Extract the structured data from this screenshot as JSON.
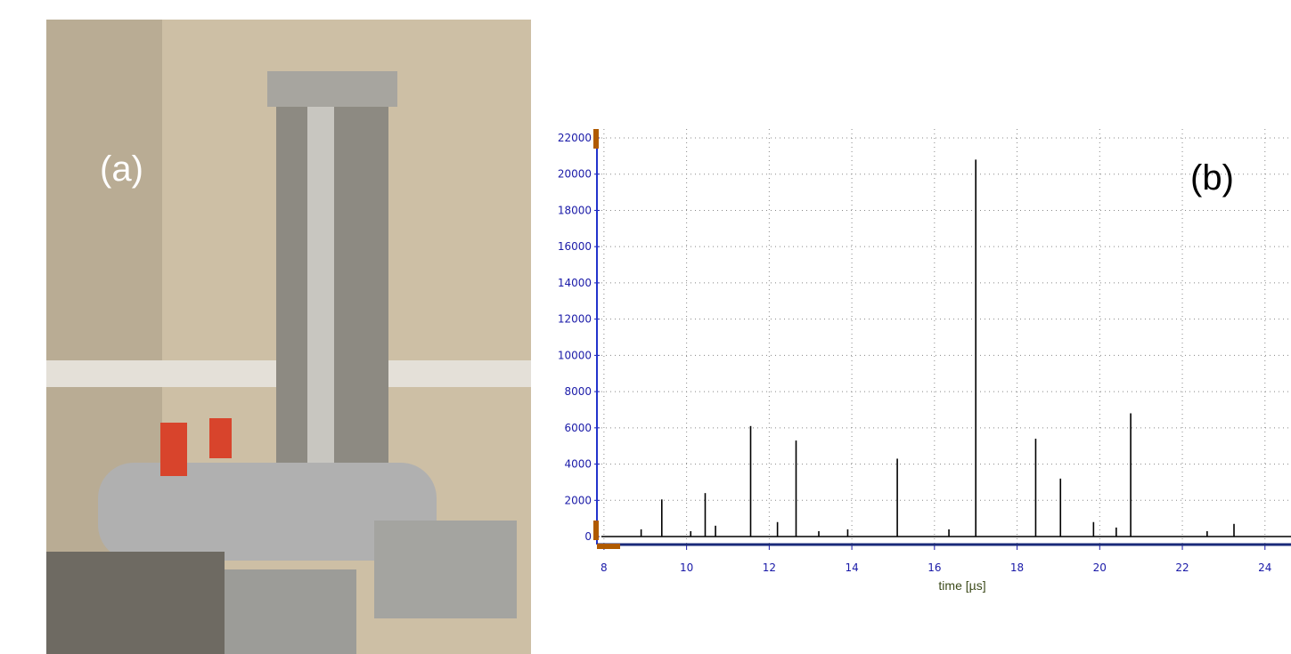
{
  "panel_a": {
    "label": "(a)"
  },
  "chart_data": {
    "type": "spectrum",
    "label": "(b)",
    "x_label": "time [µs]",
    "x": [
      8.9,
      9.4,
      10.1,
      10.45,
      10.7,
      11.55,
      12.2,
      12.65,
      13.2,
      13.9,
      15.1,
      16.35,
      17.0,
      18.45,
      19.05,
      19.85,
      20.4,
      20.75,
      22.6,
      23.25
    ],
    "values": [
      400,
      2050,
      300,
      2400,
      600,
      6100,
      800,
      5300,
      300,
      400,
      4300,
      400,
      20800,
      5400,
      3200,
      800,
      500,
      6800,
      300,
      700
    ],
    "color": "#000000",
    "xlim": [
      7.83,
      24.63
    ],
    "ylim": [
      -440,
      22490
    ],
    "xticks": [
      8,
      10,
      12,
      14,
      16,
      18,
      20,
      22,
      24
    ],
    "yticks": [
      0,
      2000,
      4000,
      6000,
      8000,
      10000,
      12000,
      14000,
      16000,
      18000,
      20000,
      22000
    ],
    "grid": true
  }
}
